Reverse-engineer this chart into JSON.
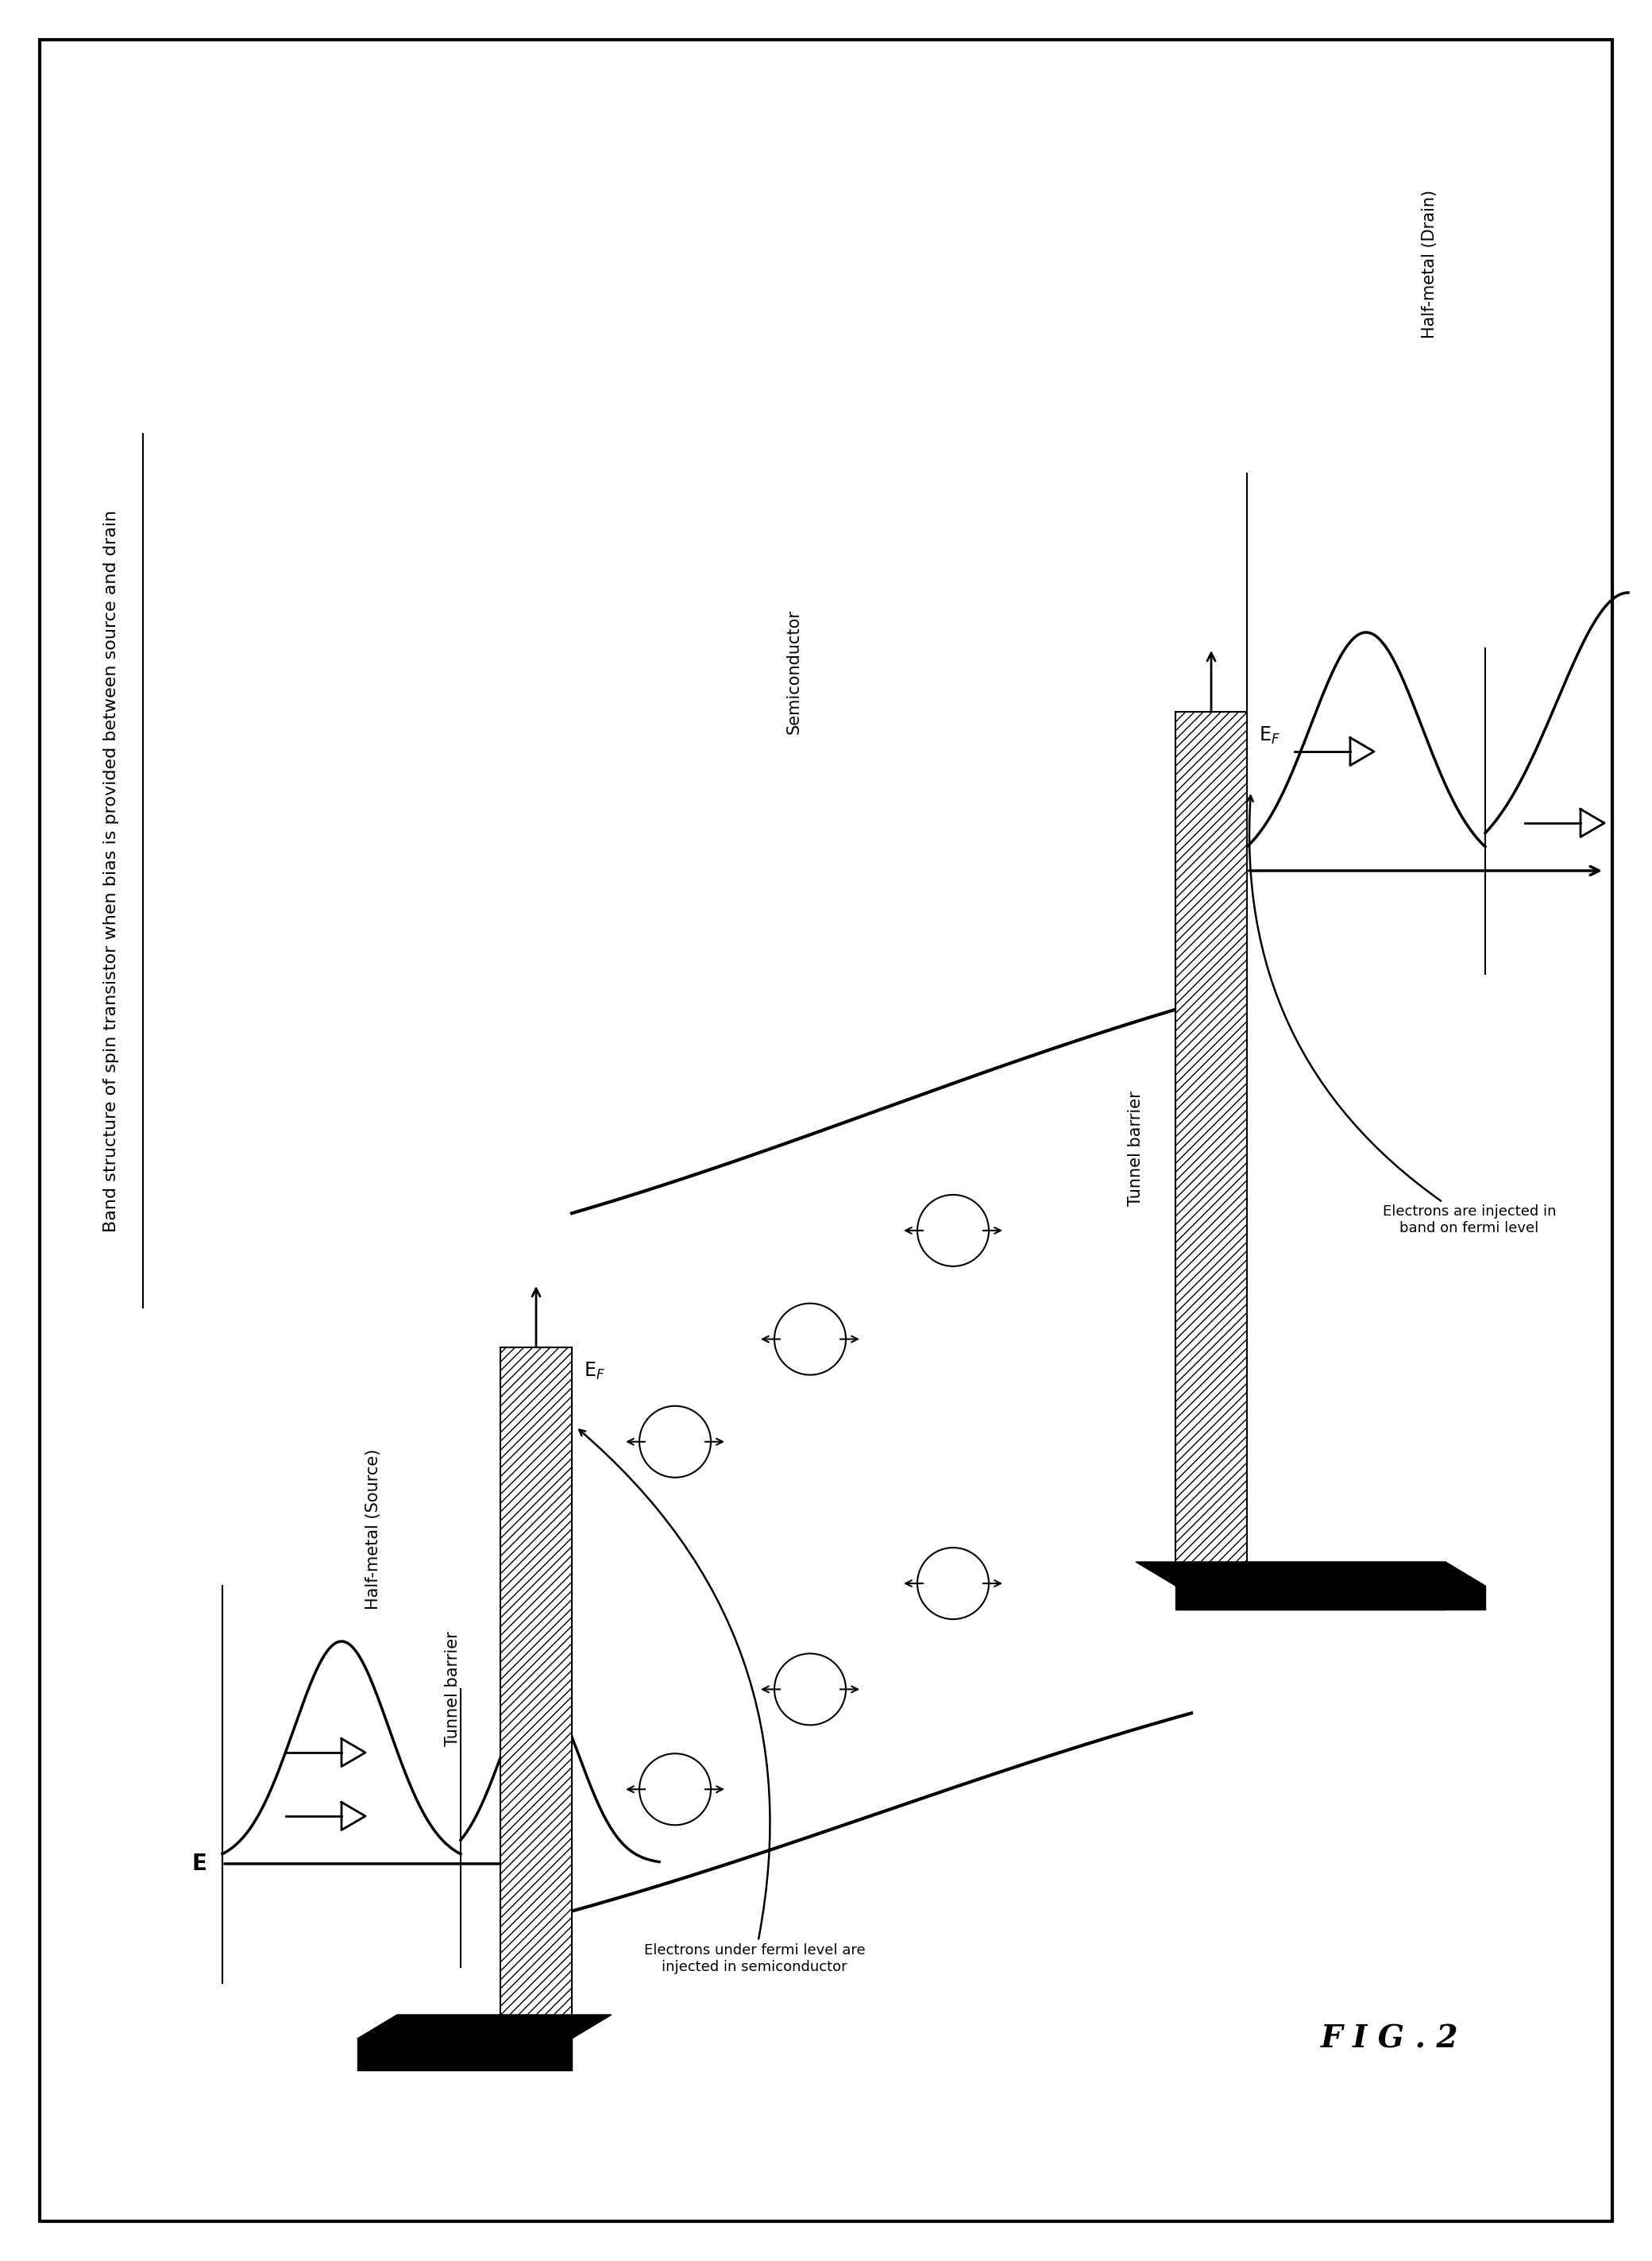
{
  "title": "Band structure of spin transistor when bias is provided between source and drain",
  "fig_label": "F I G . 2",
  "background_color": "#ffffff",
  "border_color": "#000000",
  "label_source": "Half-metal (Source)",
  "label_drain": "Half-metal (Drain)",
  "label_semiconductor": "Semiconductor",
  "label_tunnel_barrier_left": "Tunnel barrier",
  "label_tunnel_barrier_right": "Tunnel barrier",
  "annotation_source": "Electrons under fermi level are\ninjected in semiconductor",
  "annotation_drain": "Electrons are injected in\nband on fermi level",
  "text_color": "#000000",
  "lw_band": 2.5,
  "lw_thick": 4.0
}
